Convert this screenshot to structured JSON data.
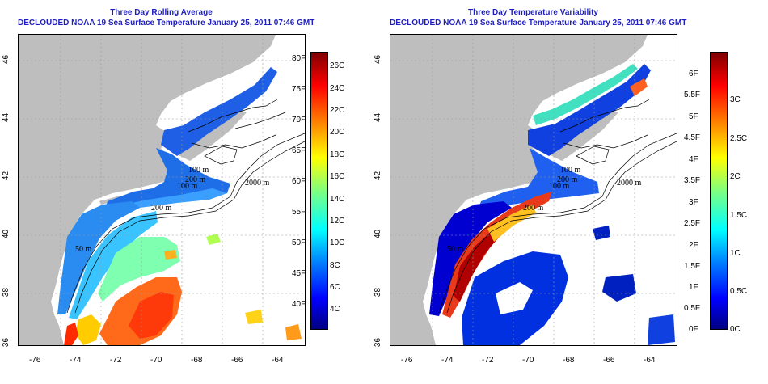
{
  "colors": {
    "title": "#1f1fbf",
    "land": "#bebebe",
    "ocean_no_data": "#ffffff",
    "grid": "#999999",
    "colormap": [
      "#00007f",
      "#0000ff",
      "#007fff",
      "#00ffff",
      "#7fff7f",
      "#ffff00",
      "#ff7f00",
      "#ff0000",
      "#7f0000"
    ]
  },
  "left_panel": {
    "title_line1": "Three Day Rolling Average",
    "title_line2": "DECLOUDED NOAA 19 Sea Surface Temperature January 25, 2011 07:46 GMT",
    "x_ticks": [
      "-76",
      "-74",
      "-72",
      "-70",
      "-68",
      "-66",
      "-64"
    ],
    "y_ticks": [
      "46",
      "44",
      "42",
      "40",
      "38",
      "36"
    ],
    "contour_labels": [
      "2000 m",
      "100 m",
      "200 m",
      "100 m",
      "200 m",
      "50 m"
    ],
    "colorbar": {
      "fahrenheit": [
        "80F",
        "75F",
        "70F",
        "65F",
        "60F",
        "55F",
        "50F",
        "45F",
        "40F"
      ],
      "celsius": [
        "26C",
        "24C",
        "22C",
        "20C",
        "18C",
        "16C",
        "14C",
        "12C",
        "10C",
        "8C",
        "6C",
        "4C"
      ]
    }
  },
  "right_panel": {
    "title_line1": "Three Day Temperature Variability",
    "title_line2": "DECLOUDED NOAA 19 Sea Surface Temperature January 25, 2011 07:46 GMT",
    "x_ticks": [
      "-76",
      "-74",
      "-72",
      "-70",
      "-68",
      "-66",
      "-64"
    ],
    "y_ticks": [
      "46",
      "44",
      "42",
      "40",
      "38",
      "36"
    ],
    "contour_labels": [
      "2000 m",
      "100 m",
      "200 m",
      "100 m",
      "200 m",
      "50 m"
    ],
    "colorbar": {
      "fahrenheit": [
        "6F",
        "5.5F",
        "5F",
        "4.5F",
        "4F",
        "3.5F",
        "3F",
        "2.5F",
        "2F",
        "1.5F",
        "1F",
        "0.5F",
        "0F"
      ],
      "celsius": [
        "3C",
        "2.5C",
        "2C",
        "1.5C",
        "1C",
        "0.5C",
        "0C"
      ]
    }
  }
}
